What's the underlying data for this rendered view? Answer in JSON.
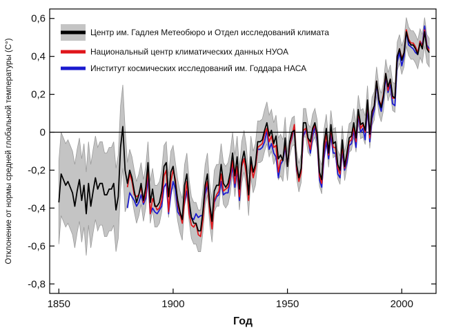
{
  "chart_data": {
    "type": "line",
    "title": "",
    "xlabel": "Год",
    "ylabel": "Отклонение от нормы средней глобальной температуры (C°)",
    "xlim": [
      1846,
      2015
    ],
    "ylim": [
      -0.85,
      0.65
    ],
    "xticks": [
      1850,
      1900,
      1950,
      2000
    ],
    "yticks": [
      0.6,
      0.4,
      0.2,
      0,
      -0.2,
      -0.4,
      -0.6,
      -0.8
    ],
    "ytick_labels": [
      "0,6",
      "0,4",
      "0,2",
      "0",
      "-0,2",
      "-0,4",
      "-0,6",
      "-0,8"
    ],
    "zero_line": true,
    "grid": false,
    "legend_position": "top-left",
    "colors": {
      "hadley": "#000000",
      "noaa": "#e0161b",
      "nasa": "#1a1acf",
      "band": "#c4c4c4",
      "band_edge": "#9a9a9a"
    },
    "series": [
      {
        "name": "Центр им. Гадлея Метеобюро и Отдел исследований климата",
        "x_start": 1850,
        "x_end": 2012,
        "values": [
          -0.37,
          -0.22,
          -0.25,
          -0.28,
          -0.26,
          -0.29,
          -0.32,
          -0.39,
          -0.31,
          -0.25,
          -0.36,
          -0.28,
          -0.43,
          -0.27,
          -0.39,
          -0.31,
          -0.24,
          -0.3,
          -0.27,
          -0.27,
          -0.33,
          -0.33,
          -0.3,
          -0.3,
          -0.27,
          -0.41,
          -0.34,
          -0.08,
          0.03,
          -0.2,
          -0.27,
          -0.2,
          -0.24,
          -0.31,
          -0.37,
          -0.33,
          -0.27,
          -0.36,
          -0.29,
          -0.16,
          -0.37,
          -0.3,
          -0.39,
          -0.39,
          -0.37,
          -0.31,
          -0.18,
          -0.16,
          -0.34,
          -0.21,
          -0.18,
          -0.27,
          -0.36,
          -0.42,
          -0.46,
          -0.28,
          -0.22,
          -0.36,
          -0.45,
          -0.48,
          -0.48,
          -0.52,
          -0.52,
          -0.42,
          -0.28,
          -0.22,
          -0.38,
          -0.47,
          -0.31,
          -0.28,
          -0.28,
          -0.17,
          -0.27,
          -0.29,
          -0.27,
          -0.21,
          -0.11,
          -0.23,
          -0.13,
          -0.3,
          -0.16,
          -0.1,
          -0.18,
          -0.33,
          -0.13,
          -0.21,
          -0.17,
          -0.05,
          -0.05,
          -0.04,
          0.01,
          0.05,
          -0.02,
          0.01,
          -0.06,
          -0.02,
          -0.14,
          -0.12,
          -0.15,
          -0.03,
          -0.18,
          -0.05,
          0.0,
          0.01,
          -0.17,
          -0.24,
          -0.19,
          0.05,
          0.05,
          -0.03,
          -0.05,
          0.02,
          0.05,
          -0.01,
          -0.21,
          -0.25,
          -0.06,
          0.02,
          -0.11,
          0.04,
          -0.06,
          -0.05,
          -0.17,
          -0.2,
          -0.04,
          -0.18,
          -0.11,
          -0.03,
          -0.02,
          0.05,
          -0.03,
          0.12,
          0.04,
          0.05,
          0.01,
          0.17,
          -0.01,
          0.11,
          0.14,
          0.27,
          0.17,
          0.13,
          0.19,
          0.31,
          0.24,
          0.28,
          0.19,
          0.18,
          0.4,
          0.44,
          0.38,
          0.42,
          0.53,
          0.48,
          0.46,
          0.46,
          0.44,
          0.41,
          0.47,
          0.44,
          0.53,
          0.44,
          0.42
        ]
      },
      {
        "name": "Национальный центр климатических данных НУОА",
        "x_start": 1880,
        "x_end": 2012,
        "values": [
          -0.29,
          -0.22,
          -0.26,
          -0.33,
          -0.34,
          -0.33,
          -0.29,
          -0.37,
          -0.33,
          -0.19,
          -0.43,
          -0.35,
          -0.38,
          -0.41,
          -0.4,
          -0.36,
          -0.23,
          -0.2,
          -0.42,
          -0.26,
          -0.2,
          -0.25,
          -0.38,
          -0.43,
          -0.48,
          -0.36,
          -0.26,
          -0.43,
          -0.49,
          -0.5,
          -0.48,
          -0.54,
          -0.55,
          -0.46,
          -0.3,
          -0.26,
          -0.42,
          -0.51,
          -0.36,
          -0.33,
          -0.31,
          -0.22,
          -0.31,
          -0.3,
          -0.29,
          -0.24,
          -0.15,
          -0.27,
          -0.18,
          -0.34,
          -0.18,
          -0.14,
          -0.22,
          -0.36,
          -0.17,
          -0.24,
          -0.19,
          -0.08,
          -0.07,
          -0.06,
          -0.01,
          0.02,
          -0.05,
          -0.02,
          -0.08,
          -0.07,
          -0.21,
          -0.15,
          -0.14,
          -0.06,
          -0.18,
          -0.07,
          -0.02,
          0.04,
          -0.19,
          -0.26,
          -0.21,
          0.01,
          0.02,
          -0.04,
          -0.09,
          0.01,
          0.04,
          -0.03,
          -0.23,
          -0.27,
          -0.1,
          -0.01,
          -0.12,
          0.02,
          -0.08,
          -0.08,
          -0.19,
          -0.22,
          -0.07,
          -0.19,
          -0.13,
          -0.05,
          -0.04,
          0.03,
          -0.05,
          0.11,
          0.02,
          0.04,
          0.0,
          0.16,
          -0.03,
          0.1,
          0.14,
          0.27,
          0.17,
          0.14,
          0.2,
          0.31,
          0.22,
          0.28,
          0.18,
          0.18,
          0.4,
          0.44,
          0.39,
          0.42,
          0.54,
          0.49,
          0.47,
          0.47,
          0.45,
          0.42,
          0.48,
          0.45,
          0.54,
          0.45,
          0.43
        ]
      },
      {
        "name": "Институт космических исследований им. Годдара НАСА",
        "x_start": 1880,
        "x_end": 2012,
        "values": [
          -0.4,
          -0.32,
          -0.34,
          -0.36,
          -0.39,
          -0.37,
          -0.33,
          -0.38,
          -0.35,
          -0.24,
          -0.43,
          -0.4,
          -0.42,
          -0.43,
          -0.41,
          -0.39,
          -0.29,
          -0.27,
          -0.43,
          -0.33,
          -0.26,
          -0.3,
          -0.42,
          -0.44,
          -0.45,
          -0.37,
          -0.31,
          -0.4,
          -0.45,
          -0.46,
          -0.43,
          -0.45,
          -0.44,
          -0.44,
          -0.33,
          -0.28,
          -0.39,
          -0.47,
          -0.37,
          -0.34,
          -0.33,
          -0.26,
          -0.33,
          -0.32,
          -0.32,
          -0.25,
          -0.18,
          -0.29,
          -0.2,
          -0.36,
          -0.18,
          -0.14,
          -0.2,
          -0.35,
          -0.16,
          -0.21,
          -0.18,
          -0.09,
          -0.09,
          -0.08,
          -0.05,
          0.01,
          -0.09,
          -0.06,
          -0.11,
          -0.13,
          -0.24,
          -0.17,
          -0.15,
          -0.08,
          -0.18,
          -0.07,
          -0.03,
          0.03,
          -0.2,
          -0.25,
          -0.21,
          -0.02,
          0.01,
          -0.03,
          -0.11,
          -0.02,
          0.03,
          -0.05,
          -0.25,
          -0.29,
          -0.14,
          -0.05,
          -0.14,
          -0.01,
          -0.11,
          -0.11,
          -0.22,
          -0.24,
          -0.1,
          -0.2,
          -0.16,
          -0.07,
          -0.06,
          0.01,
          -0.08,
          0.09,
          0.0,
          0.02,
          -0.04,
          0.13,
          -0.05,
          0.07,
          0.12,
          0.26,
          0.15,
          0.11,
          0.18,
          0.29,
          0.21,
          0.25,
          0.15,
          0.14,
          0.37,
          0.42,
          0.35,
          0.4,
          0.53,
          0.46,
          0.45,
          0.44,
          0.42,
          0.41,
          0.48,
          0.46,
          0.56,
          0.46,
          0.44
        ]
      }
    ]
  }
}
